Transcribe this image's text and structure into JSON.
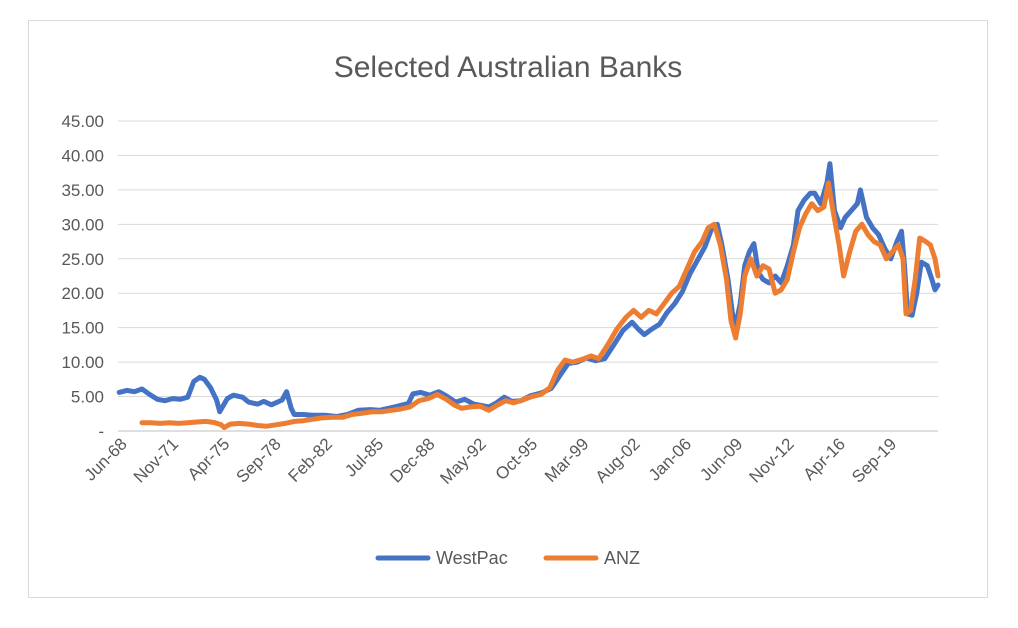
{
  "chart_data": {
    "type": "line",
    "title": "Selected Australian Banks",
    "xlabel": "",
    "ylabel": "",
    "x_tick_labels": [
      "Jun-68",
      "Nov-71",
      "Apr-75",
      "Sep-78",
      "Feb-82",
      "Jul-85",
      "Dec-88",
      "May-92",
      "Oct-95",
      "Mar-99",
      "Aug-02",
      "Jan-06",
      "Jun-09",
      "Nov-12",
      "Apr-16",
      "Sep-19"
    ],
    "y_tick_labels": [
      "-",
      "5.00",
      "10.00",
      "15.00",
      "20.00",
      "25.00",
      "30.00",
      "35.00",
      "40.00",
      "45.00"
    ],
    "ylim": [
      0,
      45
    ],
    "xlim": [
      1968.42,
      2022.3
    ],
    "grid": true,
    "legend_position": "bottom",
    "colors": {
      "WestPac": "#4472c4",
      "ANZ": "#ed7d31"
    },
    "series": [
      {
        "name": "WestPac",
        "points": [
          [
            1968.5,
            5.6
          ],
          [
            1969.0,
            5.9
          ],
          [
            1969.5,
            5.7
          ],
          [
            1970.0,
            6.1
          ],
          [
            1970.5,
            5.3
          ],
          [
            1971.0,
            4.6
          ],
          [
            1971.5,
            4.4
          ],
          [
            1972.0,
            4.7
          ],
          [
            1972.5,
            4.6
          ],
          [
            1973.0,
            4.9
          ],
          [
            1973.4,
            7.2
          ],
          [
            1973.8,
            7.8
          ],
          [
            1974.1,
            7.5
          ],
          [
            1974.5,
            6.3
          ],
          [
            1974.9,
            4.5
          ],
          [
            1975.1,
            2.8
          ],
          [
            1975.6,
            4.7
          ],
          [
            1976.0,
            5.2
          ],
          [
            1976.6,
            4.9
          ],
          [
            1977.0,
            4.2
          ],
          [
            1977.6,
            3.9
          ],
          [
            1978.0,
            4.3
          ],
          [
            1978.5,
            3.8
          ],
          [
            1979.2,
            4.5
          ],
          [
            1979.5,
            5.7
          ],
          [
            1979.8,
            3.3
          ],
          [
            1980.0,
            2.4
          ],
          [
            1980.6,
            2.4
          ],
          [
            1981.2,
            2.3
          ],
          [
            1982.0,
            2.3
          ],
          [
            1982.8,
            2.1
          ],
          [
            1983.5,
            2.4
          ],
          [
            1984.2,
            3.0
          ],
          [
            1985.0,
            3.1
          ],
          [
            1985.6,
            3.0
          ],
          [
            1986.2,
            3.3
          ],
          [
            1986.8,
            3.6
          ],
          [
            1987.5,
            4.0
          ],
          [
            1987.8,
            5.4
          ],
          [
            1988.3,
            5.6
          ],
          [
            1988.9,
            5.2
          ],
          [
            1989.5,
            5.7
          ],
          [
            1990.0,
            5.1
          ],
          [
            1990.6,
            4.2
          ],
          [
            1991.2,
            4.6
          ],
          [
            1991.8,
            3.9
          ],
          [
            1992.3,
            3.7
          ],
          [
            1992.8,
            3.5
          ],
          [
            1993.3,
            4.1
          ],
          [
            1993.8,
            4.9
          ],
          [
            1994.3,
            4.3
          ],
          [
            1994.9,
            4.4
          ],
          [
            1995.5,
            5.1
          ],
          [
            1996.2,
            5.5
          ],
          [
            1996.9,
            6.2
          ],
          [
            1997.5,
            8.2
          ],
          [
            1998.0,
            9.8
          ],
          [
            1998.6,
            10.0
          ],
          [
            1999.2,
            10.6
          ],
          [
            1999.8,
            10.2
          ],
          [
            2000.4,
            10.5
          ],
          [
            2001.0,
            12.5
          ],
          [
            2001.6,
            14.6
          ],
          [
            2002.2,
            15.8
          ],
          [
            2002.6,
            14.8
          ],
          [
            2003.0,
            14.0
          ],
          [
            2003.5,
            14.8
          ],
          [
            2004.0,
            15.5
          ],
          [
            2004.5,
            17.2
          ],
          [
            2005.0,
            18.5
          ],
          [
            2005.5,
            20.2
          ],
          [
            2006.0,
            22.8
          ],
          [
            2006.5,
            24.8
          ],
          [
            2007.0,
            26.8
          ],
          [
            2007.4,
            29.2
          ],
          [
            2007.8,
            30.0
          ],
          [
            2008.1,
            27.0
          ],
          [
            2008.5,
            22.0
          ],
          [
            2008.8,
            17.0
          ],
          [
            2009.0,
            15.3
          ],
          [
            2009.3,
            18.5
          ],
          [
            2009.6,
            24.0
          ],
          [
            2009.9,
            26.0
          ],
          [
            2010.2,
            27.2
          ],
          [
            2010.5,
            23.0
          ],
          [
            2010.8,
            22.0
          ],
          [
            2011.2,
            21.5
          ],
          [
            2011.6,
            22.5
          ],
          [
            2012.0,
            21.5
          ],
          [
            2012.4,
            24.0
          ],
          [
            2012.8,
            27.0
          ],
          [
            2013.1,
            32.0
          ],
          [
            2013.5,
            33.5
          ],
          [
            2013.9,
            34.5
          ],
          [
            2014.2,
            34.5
          ],
          [
            2014.6,
            33.0
          ],
          [
            2015.0,
            36.0
          ],
          [
            2015.2,
            38.8
          ],
          [
            2015.5,
            32.0
          ],
          [
            2015.9,
            29.5
          ],
          [
            2016.2,
            31.0
          ],
          [
            2016.6,
            32.0
          ],
          [
            2017.0,
            33.0
          ],
          [
            2017.2,
            35.0
          ],
          [
            2017.6,
            31.0
          ],
          [
            2018.0,
            29.5
          ],
          [
            2018.4,
            28.5
          ],
          [
            2018.8,
            26.5
          ],
          [
            2019.2,
            25.0
          ],
          [
            2019.6,
            27.5
          ],
          [
            2019.9,
            29.0
          ],
          [
            2020.1,
            24.0
          ],
          [
            2020.3,
            17.0
          ],
          [
            2020.6,
            16.8
          ],
          [
            2020.9,
            20.0
          ],
          [
            2021.2,
            24.5
          ],
          [
            2021.6,
            24.0
          ],
          [
            2021.9,
            22.0
          ],
          [
            2022.1,
            20.5
          ],
          [
            2022.3,
            21.2
          ]
        ]
      },
      {
        "name": "ANZ",
        "points": [
          [
            1970.0,
            1.2
          ],
          [
            1970.6,
            1.2
          ],
          [
            1971.2,
            1.1
          ],
          [
            1971.8,
            1.2
          ],
          [
            1972.4,
            1.1
          ],
          [
            1973.0,
            1.2
          ],
          [
            1973.6,
            1.3
          ],
          [
            1974.2,
            1.4
          ],
          [
            1974.8,
            1.2
          ],
          [
            1975.2,
            0.9
          ],
          [
            1975.4,
            0.5
          ],
          [
            1975.8,
            1.0
          ],
          [
            1976.4,
            1.1
          ],
          [
            1977.0,
            1.0
          ],
          [
            1977.6,
            0.8
          ],
          [
            1978.2,
            0.7
          ],
          [
            1978.8,
            0.9
          ],
          [
            1979.4,
            1.1
          ],
          [
            1980.0,
            1.4
          ],
          [
            1980.6,
            1.5
          ],
          [
            1981.2,
            1.7
          ],
          [
            1981.8,
            1.9
          ],
          [
            1982.5,
            2.0
          ],
          [
            1983.2,
            2.0
          ],
          [
            1983.8,
            2.4
          ],
          [
            1984.5,
            2.6
          ],
          [
            1985.2,
            2.8
          ],
          [
            1985.8,
            2.8
          ],
          [
            1986.4,
            3.0
          ],
          [
            1987.0,
            3.2
          ],
          [
            1987.6,
            3.5
          ],
          [
            1988.2,
            4.4
          ],
          [
            1988.8,
            4.7
          ],
          [
            1989.4,
            5.3
          ],
          [
            1990.0,
            4.6
          ],
          [
            1990.5,
            3.8
          ],
          [
            1991.0,
            3.3
          ],
          [
            1991.6,
            3.5
          ],
          [
            1992.2,
            3.6
          ],
          [
            1992.8,
            3.0
          ],
          [
            1993.3,
            3.7
          ],
          [
            1993.9,
            4.4
          ],
          [
            1994.4,
            4.1
          ],
          [
            1995.0,
            4.5
          ],
          [
            1995.6,
            5.0
          ],
          [
            1996.2,
            5.3
          ],
          [
            1996.8,
            6.3
          ],
          [
            1997.3,
            8.8
          ],
          [
            1997.8,
            10.3
          ],
          [
            1998.3,
            10.0
          ],
          [
            1998.9,
            10.4
          ],
          [
            1999.5,
            10.9
          ],
          [
            2000.0,
            10.5
          ],
          [
            2000.6,
            12.5
          ],
          [
            2001.2,
            14.8
          ],
          [
            2001.8,
            16.5
          ],
          [
            2002.3,
            17.5
          ],
          [
            2002.8,
            16.5
          ],
          [
            2003.3,
            17.5
          ],
          [
            2003.8,
            17.0
          ],
          [
            2004.3,
            18.5
          ],
          [
            2004.8,
            20.0
          ],
          [
            2005.3,
            21.0
          ],
          [
            2005.8,
            23.5
          ],
          [
            2006.3,
            26.0
          ],
          [
            2006.8,
            27.5
          ],
          [
            2007.2,
            29.5
          ],
          [
            2007.6,
            30.0
          ],
          [
            2008.0,
            27.0
          ],
          [
            2008.4,
            22.0
          ],
          [
            2008.7,
            16.0
          ],
          [
            2009.0,
            13.5
          ],
          [
            2009.3,
            17.0
          ],
          [
            2009.6,
            22.5
          ],
          [
            2010.0,
            25.0
          ],
          [
            2010.4,
            22.5
          ],
          [
            2010.8,
            24.0
          ],
          [
            2011.2,
            23.5
          ],
          [
            2011.6,
            20.0
          ],
          [
            2012.0,
            20.5
          ],
          [
            2012.4,
            22.0
          ],
          [
            2012.8,
            26.0
          ],
          [
            2013.2,
            29.5
          ],
          [
            2013.6,
            31.5
          ],
          [
            2014.0,
            33.0
          ],
          [
            2014.4,
            32.0
          ],
          [
            2014.8,
            32.5
          ],
          [
            2015.1,
            36.0
          ],
          [
            2015.4,
            32.0
          ],
          [
            2015.8,
            27.0
          ],
          [
            2016.1,
            22.5
          ],
          [
            2016.5,
            26.0
          ],
          [
            2016.9,
            29.0
          ],
          [
            2017.3,
            30.0
          ],
          [
            2017.7,
            28.5
          ],
          [
            2018.1,
            27.5
          ],
          [
            2018.5,
            27.0
          ],
          [
            2018.9,
            25.0
          ],
          [
            2019.3,
            26.0
          ],
          [
            2019.7,
            27.0
          ],
          [
            2020.0,
            25.0
          ],
          [
            2020.2,
            17.0
          ],
          [
            2020.5,
            17.5
          ],
          [
            2020.8,
            22.0
          ],
          [
            2021.1,
            28.0
          ],
          [
            2021.5,
            27.5
          ],
          [
            2021.8,
            27.0
          ],
          [
            2022.1,
            25.0
          ],
          [
            2022.3,
            22.5
          ]
        ]
      }
    ]
  }
}
